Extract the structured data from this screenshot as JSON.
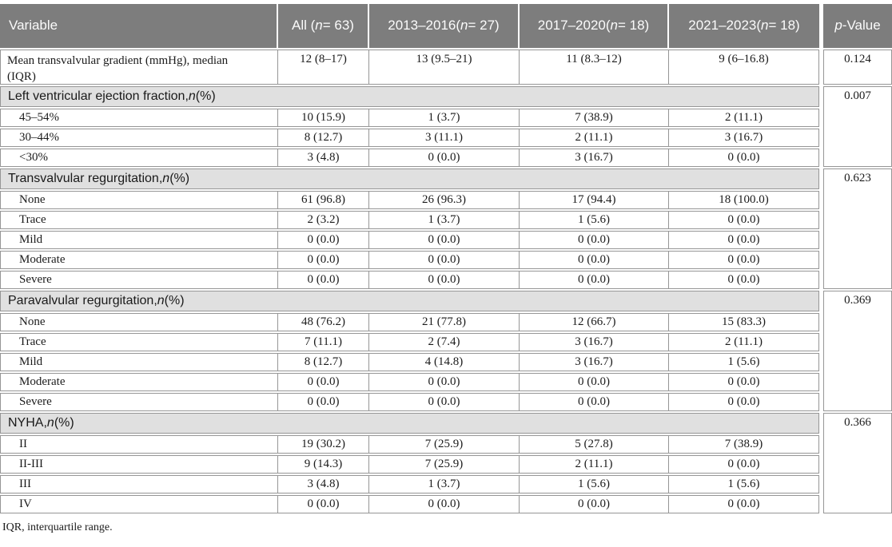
{
  "table": {
    "columns": [
      {
        "name": "variable",
        "segments": [
          {
            "text": "Variable"
          }
        ]
      },
      {
        "name": "all",
        "segments": [
          {
            "text": "All ("
          },
          {
            "text": "n",
            "italic": true
          },
          {
            "text": " = 63)"
          }
        ]
      },
      {
        "name": "period-2013-2016",
        "segments": [
          {
            "text": "2013–2016"
          },
          {
            "break": true
          },
          {
            "text": "("
          },
          {
            "text": "n",
            "italic": true
          },
          {
            "text": " = 27)"
          }
        ]
      },
      {
        "name": "period-2017-2020",
        "segments": [
          {
            "text": "2017–2020"
          },
          {
            "break": true
          },
          {
            "text": "("
          },
          {
            "text": "n",
            "italic": true
          },
          {
            "text": " = 18)"
          }
        ]
      },
      {
        "name": "period-2021-2023",
        "segments": [
          {
            "text": "2021–2023"
          },
          {
            "break": true
          },
          {
            "text": "("
          },
          {
            "text": "n",
            "italic": true
          },
          {
            "text": " = 18)"
          }
        ]
      },
      {
        "name": "p-value",
        "segments": [
          {
            "text": "p",
            "italic": true
          },
          {
            "text": "-Value"
          }
        ]
      }
    ],
    "sections": [
      {
        "type": "single",
        "label": "Mean transvalvular gradient (mmHg), median (IQR)",
        "values": [
          "12 (8–17)",
          "13 (9.5–21)",
          "11 (8.3–12)",
          "9 (6–16.8)"
        ],
        "p_value": "0.124"
      },
      {
        "type": "group",
        "header_segments": [
          {
            "text": "Left ventricular ejection fraction, "
          },
          {
            "text": "n",
            "italic": true
          },
          {
            "text": " (%)"
          }
        ],
        "p_value": "0.007",
        "rows": [
          {
            "label": "45–54%",
            "values": [
              "10 (15.9)",
              "1 (3.7)",
              "7 (38.9)",
              "2 (11.1)"
            ]
          },
          {
            "label": "30–44%",
            "values": [
              "8 (12.7)",
              "3 (11.1)",
              "2 (11.1)",
              "3 (16.7)"
            ]
          },
          {
            "label": "<30%",
            "values": [
              "3 (4.8)",
              "0 (0.0)",
              "3 (16.7)",
              "0 (0.0)"
            ]
          }
        ]
      },
      {
        "type": "group",
        "header_segments": [
          {
            "text": "Transvalvular regurgitation, "
          },
          {
            "text": "n",
            "italic": true
          },
          {
            "text": " (%)"
          }
        ],
        "p_value": "0.623",
        "rows": [
          {
            "label": "None",
            "values": [
              "61 (96.8)",
              "26 (96.3)",
              "17 (94.4)",
              "18 (100.0)"
            ]
          },
          {
            "label": "Trace",
            "values": [
              "2 (3.2)",
              "1 (3.7)",
              "1 (5.6)",
              "0 (0.0)"
            ]
          },
          {
            "label": "Mild",
            "values": [
              "0 (0.0)",
              "0 (0.0)",
              "0 (0.0)",
              "0 (0.0)"
            ]
          },
          {
            "label": "Moderate",
            "values": [
              "0 (0.0)",
              "0 (0.0)",
              "0 (0.0)",
              "0 (0.0)"
            ]
          },
          {
            "label": "Severe",
            "values": [
              "0 (0.0)",
              "0 (0.0)",
              "0 (0.0)",
              "0 (0.0)"
            ]
          }
        ]
      },
      {
        "type": "group",
        "header_segments": [
          {
            "text": "Paravalvular regurgitation, "
          },
          {
            "text": "n",
            "italic": true
          },
          {
            "text": " (%)"
          }
        ],
        "p_value": "0.369",
        "rows": [
          {
            "label": "None",
            "values": [
              "48 (76.2)",
              "21 (77.8)",
              "12 (66.7)",
              "15 (83.3)"
            ]
          },
          {
            "label": "Trace",
            "values": [
              "7 (11.1)",
              "2 (7.4)",
              "3 (16.7)",
              "2 (11.1)"
            ]
          },
          {
            "label": "Mild",
            "values": [
              "8 (12.7)",
              "4 (14.8)",
              "3 (16.7)",
              "1 (5.6)"
            ]
          },
          {
            "label": "Moderate",
            "values": [
              "0 (0.0)",
              "0 (0.0)",
              "0 (0.0)",
              "0 (0.0)"
            ]
          },
          {
            "label": "Severe",
            "values": [
              "0 (0.0)",
              "0 (0.0)",
              "0 (0.0)",
              "0 (0.0)"
            ]
          }
        ]
      },
      {
        "type": "group",
        "header_segments": [
          {
            "text": "NYHA, "
          },
          {
            "text": "n",
            "italic": true
          },
          {
            "text": " (%)"
          }
        ],
        "p_value": "0.366",
        "rows": [
          {
            "label": "II",
            "values": [
              "19 (30.2)",
              "7 (25.9)",
              "5 (27.8)",
              "7 (38.9)"
            ]
          },
          {
            "label": "II-III",
            "values": [
              "9 (14.3)",
              "7 (25.9)",
              "2 (11.1)",
              "0 (0.0)"
            ]
          },
          {
            "label": "III",
            "values": [
              "3 (4.8)",
              "1 (3.7)",
              "1 (5.6)",
              "1 (5.6)"
            ]
          },
          {
            "label": "IV",
            "values": [
              "0 (0.0)",
              "0 (0.0)",
              "0 (0.0)",
              "0 (0.0)"
            ]
          }
        ]
      }
    ]
  },
  "footnote": "IQR, interquartile range.",
  "colors": {
    "header_bg": "#7d7d7d",
    "header_text": "#fbfbfb",
    "section_bg": "#e0e0e0",
    "border": "#969696"
  }
}
